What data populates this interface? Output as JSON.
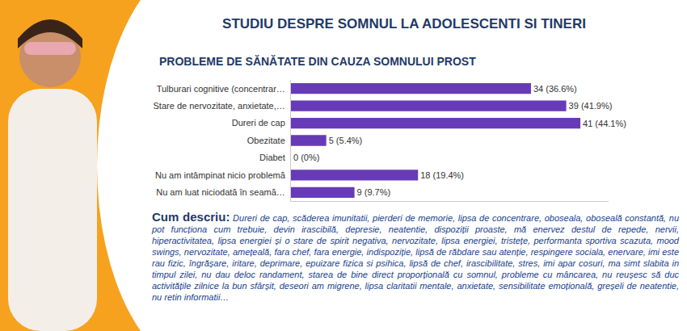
{
  "header": {
    "title": "STUDIU DESPRE SOMNUL LA ADOLESCENTI SI TINERI"
  },
  "chart_data": {
    "type": "bar",
    "orientation": "horizontal",
    "title": "PROBLEME DE SĂNĂTATE DIN CAUZA SOMNULUI PROST",
    "categories": [
      "Tulburari cognitive (concentrar…",
      "Stare de nervozitate, anxietate,…",
      "Dureri de cap",
      "Obezitate",
      "Diabet",
      "Nu am intâmpinat nicio problemă",
      "Nu am luat niciodată în seamă…"
    ],
    "values": [
      34,
      39,
      41,
      5,
      0,
      18,
      9
    ],
    "value_labels": [
      "34 (36.6%)",
      "39 (41.9%)",
      "41 (44.1%)",
      "5 (5.4%)",
      "0 (0%)",
      "18 (19.4%)",
      "9 (9.7%)"
    ],
    "color": "#673ab7",
    "xlim": [
      0,
      45
    ],
    "grid": false,
    "data_labels": true,
    "tick_labels": "y"
  },
  "description": {
    "label": "Cum descriu:",
    "text": "Dureri de cap, scăderea imunitatii, pierderi de memorie, lipsa de concentrare, oboseala, oboseală constantă, nu pot funcționa cum trebuie, devin irascibilă, depresie, neatentie, dispoziții proaste, mă enervez destul de repede, nervii, hiperactivitatea, lipsa energiei și o stare de spirit negativa, nervozitate, lipsa energiei, tristețe, performanta sportiva scazuta, mood swings, nervozitate, amețeală, fara chef, fara energie, indispoziție, lipsă de răbdare sau atenție, respingere sociala, enervare, imi este rau fizic, îngrășare, iritare, deprimare, epuizare fizica si psihica, lipsă de chef, irascibilitate, stres, imi apar cosuri, ma simt slabita in timpul zilei, nu dau deloc randament, starea de bine direct proporțională cu somnul, probleme cu mâncarea, nu reușesc să duc activitățile zilnice la bun sfârșit, deseori am migrene, lipsa claritatii mentale, anxietate, sensibilitate emoțională, greșeli de neatentie, nu retin informatii…"
  }
}
